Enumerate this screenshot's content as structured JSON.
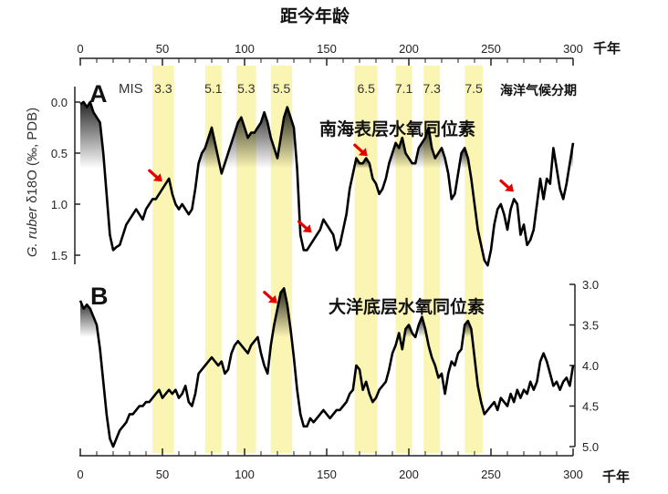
{
  "chart_data": [
    {
      "type": "line",
      "panel_label": "A",
      "title": "距今年龄",
      "series_name": "南海表层水氧同位素",
      "ylabel_italic": "G. ruber",
      "ylabel_rest": " δ18O (‰, PDB)",
      "y_inverted": true,
      "ylim": [
        1.6,
        -0.2
      ],
      "yticks": [
        0.0,
        0.5,
        1.0,
        1.5
      ],
      "ytick_labels": [
        "0.0",
        "0.5",
        "1.0",
        "1.5"
      ],
      "xlim": [
        0,
        300
      ],
      "xticks": [
        0,
        50,
        100,
        150,
        200,
        250,
        300
      ],
      "xtick_labels": [
        "0",
        "50",
        "100",
        "150",
        "200",
        "250",
        "300"
      ],
      "xunit": "千年",
      "mis_header": "MIS",
      "mis_note": "海洋气候分期",
      "mis_stages": [
        {
          "label": "3.3",
          "start": 44,
          "end": 57
        },
        {
          "label": "5.1",
          "start": 76,
          "end": 86
        },
        {
          "label": "5.3",
          "start": 95,
          "end": 107
        },
        {
          "label": "5.5",
          "start": 116,
          "end": 129
        },
        {
          "label": "6.5",
          "start": 167,
          "end": 181
        },
        {
          "label": "7.1",
          "start": 192,
          "end": 202
        },
        {
          "label": "7.3",
          "start": 209,
          "end": 219
        },
        {
          "label": "7.5",
          "start": 234,
          "end": 245
        }
      ],
      "red_arrow_at_age": [
        51,
        142,
        176,
        265
      ],
      "x": [
        0,
        2,
        4,
        6,
        8,
        10,
        12,
        14,
        16,
        18,
        20,
        22,
        24,
        26,
        28,
        30,
        32,
        34,
        36,
        38,
        40,
        42,
        44,
        46,
        48,
        50,
        52,
        54,
        56,
        58,
        60,
        62,
        64,
        66,
        68,
        70,
        72,
        74,
        76,
        78,
        80,
        82,
        84,
        86,
        88,
        90,
        92,
        94,
        96,
        98,
        100,
        102,
        104,
        106,
        108,
        110,
        112,
        114,
        116,
        118,
        120,
        122,
        124,
        126,
        128,
        130,
        132,
        134,
        136,
        138,
        140,
        142,
        144,
        146,
        148,
        150,
        152,
        154,
        156,
        158,
        160,
        162,
        164,
        166,
        168,
        170,
        172,
        174,
        176,
        178,
        180,
        182,
        184,
        186,
        188,
        190,
        192,
        194,
        196,
        198,
        200,
        202,
        204,
        206,
        208,
        210,
        212,
        214,
        216,
        218,
        220,
        222,
        224,
        226,
        228,
        230,
        232,
        234,
        236,
        238,
        240,
        242,
        244,
        246,
        248,
        250,
        252,
        254,
        256,
        258,
        260,
        262,
        264,
        266,
        268,
        270,
        272,
        274,
        276,
        278,
        280,
        282,
        284,
        286,
        288,
        290,
        292,
        294,
        296,
        298,
        300
      ],
      "y": [
        0.02,
        0.0,
        0.05,
        0.0,
        0.1,
        0.15,
        0.2,
        0.5,
        0.9,
        1.3,
        1.45,
        1.42,
        1.4,
        1.3,
        1.2,
        1.15,
        1.1,
        1.05,
        1.1,
        1.15,
        1.05,
        1.0,
        0.95,
        0.95,
        0.9,
        0.85,
        0.8,
        0.75,
        0.9,
        1.0,
        1.05,
        1.0,
        1.05,
        1.1,
        1.05,
        0.85,
        0.6,
        0.5,
        0.45,
        0.35,
        0.25,
        0.4,
        0.55,
        0.7,
        0.6,
        0.5,
        0.4,
        0.3,
        0.2,
        0.15,
        0.25,
        0.35,
        0.3,
        0.3,
        0.25,
        0.2,
        0.1,
        0.2,
        0.35,
        0.45,
        0.55,
        0.35,
        0.15,
        0.05,
        0.15,
        0.25,
        0.65,
        1.3,
        1.45,
        1.45,
        1.4,
        1.35,
        1.3,
        1.25,
        1.15,
        1.2,
        1.25,
        1.3,
        1.45,
        1.4,
        1.25,
        1.1,
        0.85,
        0.7,
        0.55,
        0.6,
        0.6,
        0.55,
        0.6,
        0.75,
        0.8,
        0.9,
        0.85,
        0.75,
        0.6,
        0.5,
        0.4,
        0.45,
        0.35,
        0.5,
        0.55,
        0.6,
        0.6,
        0.45,
        0.4,
        0.35,
        0.25,
        0.45,
        0.55,
        0.5,
        0.45,
        0.55,
        0.7,
        0.95,
        0.9,
        0.7,
        0.5,
        0.45,
        0.55,
        0.75,
        1.0,
        1.25,
        1.4,
        1.55,
        1.6,
        1.45,
        1.2,
        1.05,
        1.0,
        1.1,
        1.25,
        1.05,
        0.95,
        1.0,
        1.3,
        1.2,
        1.4,
        1.35,
        1.25,
        1.0,
        0.75,
        0.95,
        0.75,
        0.8,
        0.45,
        0.65,
        0.85,
        0.95,
        0.8,
        0.6,
        0.4
      ]
    },
    {
      "type": "line",
      "panel_label": "B",
      "series_name": "大洋底层水氧同位素",
      "y_inverted": true,
      "ylim": [
        5.0,
        3.0
      ],
      "yticks": [
        3.0,
        3.5,
        4.0,
        4.5,
        5.0
      ],
      "ytick_labels": [
        "3.0",
        "3.5",
        "4.0",
        "4.5",
        "5.0"
      ],
      "xlim": [
        0,
        300
      ],
      "xticks": [
        0,
        50,
        100,
        150,
        200,
        250,
        300
      ],
      "xtick_labels": [
        "0",
        "50",
        "100",
        "150",
        "200",
        "250",
        "300"
      ],
      "xunit": "千年",
      "red_arrow_at_age": [
        121
      ],
      "x": [
        0,
        2,
        4,
        6,
        8,
        10,
        12,
        14,
        16,
        18,
        20,
        22,
        24,
        26,
        28,
        30,
        32,
        34,
        36,
        38,
        40,
        42,
        44,
        46,
        48,
        50,
        52,
        54,
        56,
        58,
        60,
        62,
        64,
        66,
        68,
        70,
        72,
        74,
        76,
        78,
        80,
        82,
        84,
        86,
        88,
        90,
        92,
        94,
        96,
        98,
        100,
        102,
        104,
        106,
        108,
        110,
        112,
        114,
        116,
        118,
        120,
        122,
        124,
        126,
        128,
        130,
        132,
        134,
        136,
        138,
        140,
        142,
        144,
        146,
        148,
        150,
        152,
        154,
        156,
        158,
        160,
        162,
        164,
        166,
        168,
        170,
        172,
        174,
        176,
        178,
        180,
        182,
        184,
        186,
        188,
        190,
        192,
        194,
        196,
        198,
        200,
        202,
        204,
        206,
        208,
        210,
        212,
        214,
        216,
        218,
        220,
        222,
        224,
        226,
        228,
        230,
        232,
        234,
        236,
        238,
        240,
        242,
        244,
        246,
        248,
        250,
        252,
        254,
        256,
        258,
        260,
        262,
        264,
        266,
        268,
        270,
        272,
        274,
        276,
        278,
        280,
        282,
        284,
        286,
        288,
        290,
        292,
        294,
        296,
        298,
        300
      ],
      "y": [
        3.2,
        3.3,
        3.25,
        3.3,
        3.4,
        3.5,
        3.8,
        4.2,
        4.6,
        4.9,
        5.0,
        4.9,
        4.8,
        4.75,
        4.7,
        4.6,
        4.6,
        4.55,
        4.5,
        4.5,
        4.45,
        4.45,
        4.4,
        4.35,
        4.3,
        4.4,
        4.35,
        4.3,
        4.35,
        4.3,
        4.4,
        4.35,
        4.25,
        4.45,
        4.5,
        4.35,
        4.1,
        4.05,
        4.0,
        3.95,
        3.9,
        3.95,
        4.0,
        3.95,
        4.1,
        4.05,
        3.85,
        3.75,
        3.7,
        3.75,
        3.8,
        3.85,
        3.75,
        3.7,
        3.65,
        3.85,
        4.0,
        4.1,
        3.75,
        3.5,
        3.3,
        3.1,
        3.05,
        3.25,
        3.55,
        3.9,
        4.3,
        4.6,
        4.75,
        4.75,
        4.65,
        4.7,
        4.65,
        4.6,
        4.55,
        4.6,
        4.65,
        4.6,
        4.55,
        4.55,
        4.5,
        4.45,
        4.35,
        4.3,
        4.0,
        4.05,
        4.3,
        4.2,
        4.35,
        4.45,
        4.4,
        4.3,
        4.25,
        4.2,
        4.05,
        3.85,
        3.75,
        3.6,
        3.8,
        3.55,
        3.5,
        3.6,
        3.65,
        3.5,
        3.4,
        3.55,
        3.75,
        3.9,
        4.0,
        4.15,
        4.1,
        4.35,
        4.1,
        3.95,
        4.0,
        3.85,
        3.8,
        3.5,
        3.45,
        3.55,
        3.9,
        4.25,
        4.45,
        4.6,
        4.55,
        4.5,
        4.45,
        4.55,
        4.4,
        4.45,
        4.5,
        4.35,
        4.45,
        4.3,
        4.4,
        4.3,
        4.35,
        4.2,
        4.3,
        4.2,
        3.95,
        3.85,
        3.95,
        4.1,
        4.25,
        4.2,
        4.3,
        4.2,
        4.15,
        4.25,
        4.0
      ]
    }
  ]
}
